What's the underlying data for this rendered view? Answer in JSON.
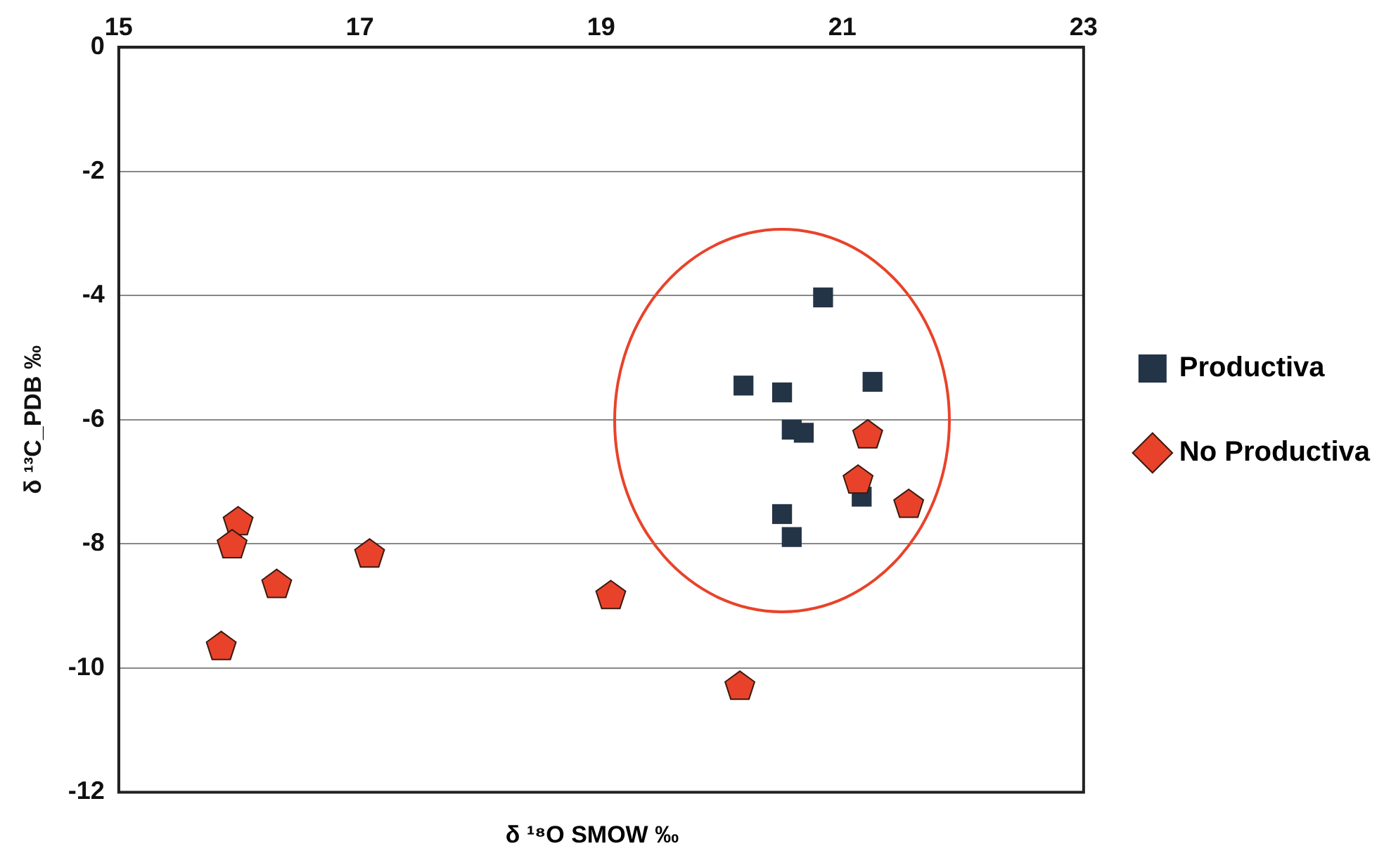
{
  "chart_data": {
    "type": "scatter",
    "xlabel": "δ ¹⁸O  SMOW ‰",
    "ylabel": "δ ¹³C_PDB ‰",
    "xlim": [
      15,
      23
    ],
    "xticks": [
      15,
      17,
      19,
      21,
      23
    ],
    "ylim": [
      -12,
      0
    ],
    "yticks": [
      -12,
      -10,
      -8,
      -6,
      -4,
      -2,
      0
    ],
    "grid": "y",
    "legend": "right",
    "series": [
      {
        "name": "Productiva",
        "color": "#243447",
        "marker": "square",
        "x": [
          20.84,
          20.18,
          20.5,
          21.25,
          20.58,
          20.68,
          20.5,
          20.58,
          21.16
        ],
        "values": [
          -4.03,
          -5.45,
          -5.56,
          -5.39,
          -6.16,
          -6.21,
          -7.52,
          -7.89,
          -7.24
        ]
      },
      {
        "name": "No Productiva",
        "color": "#e8432a",
        "x": [
          15.99,
          15.94,
          16.31,
          17.08,
          15.85,
          19.08,
          20.15,
          21.21,
          21.13,
          21.55
        ],
        "values": [
          -7.65,
          -8.02,
          -8.66,
          -8.17,
          -9.66,
          -8.84,
          -10.3,
          -6.25,
          -6.98,
          -7.37
        ]
      }
    ]
  }
}
